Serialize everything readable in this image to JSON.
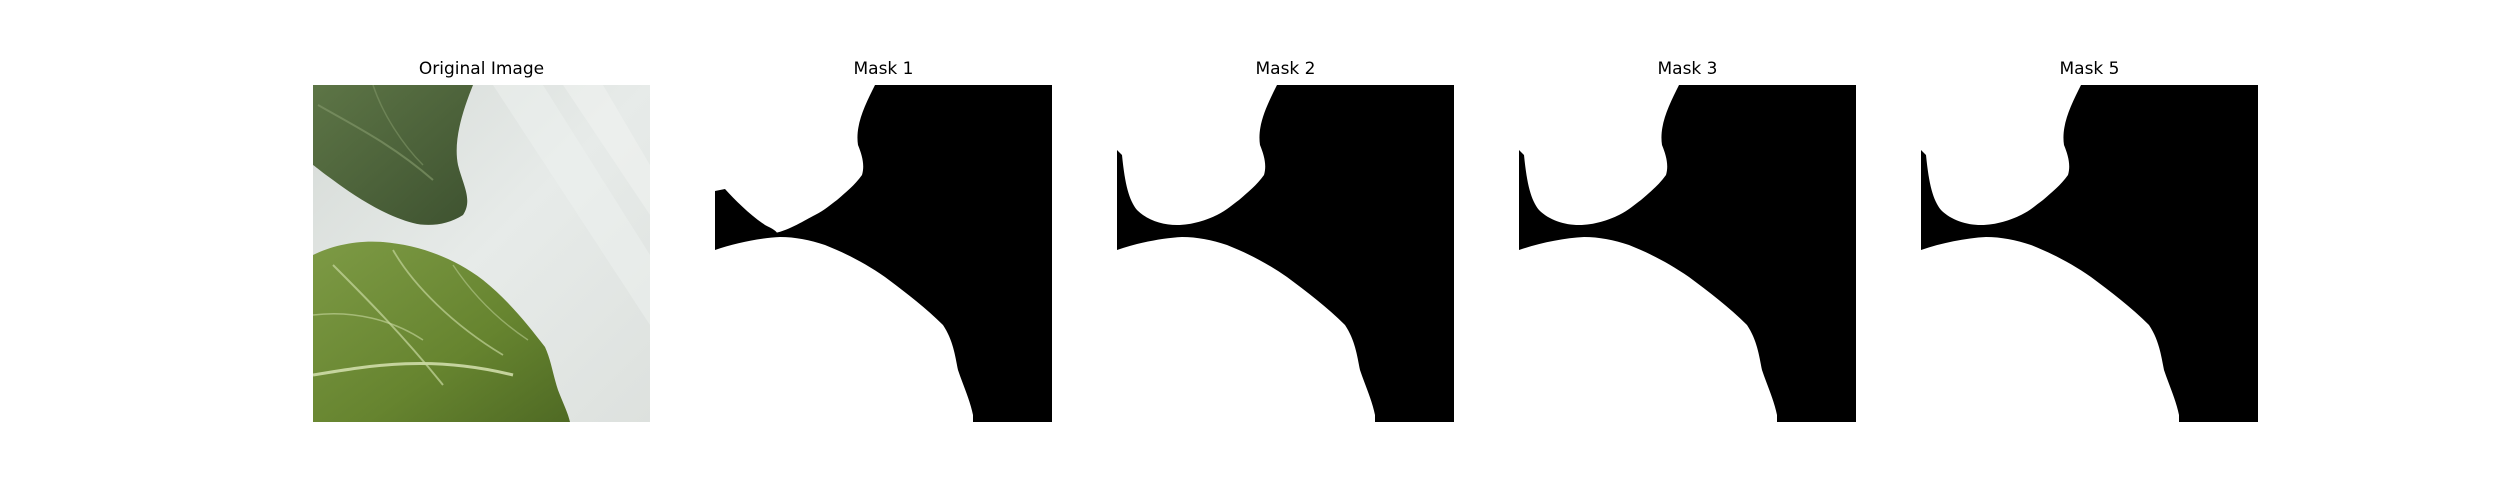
{
  "figure": {
    "panels": [
      {
        "title": "Original Image",
        "kind": "photo"
      },
      {
        "title": "Mask 1",
        "kind": "mask"
      },
      {
        "title": "Mask 2",
        "kind": "mask"
      },
      {
        "title": "Mask 3",
        "kind": "mask"
      },
      {
        "title": "Mask 5",
        "kind": "mask"
      }
    ]
  },
  "colors": {
    "background": "#ffffff",
    "mask_fg": "#ffffff",
    "mask_bg": "#000000",
    "photo_background": "#dfe3e1",
    "leaf_dark": "#4a5e33",
    "leaf_light": "#6e8c3c",
    "leaf_vein": "#c8d8a0"
  }
}
